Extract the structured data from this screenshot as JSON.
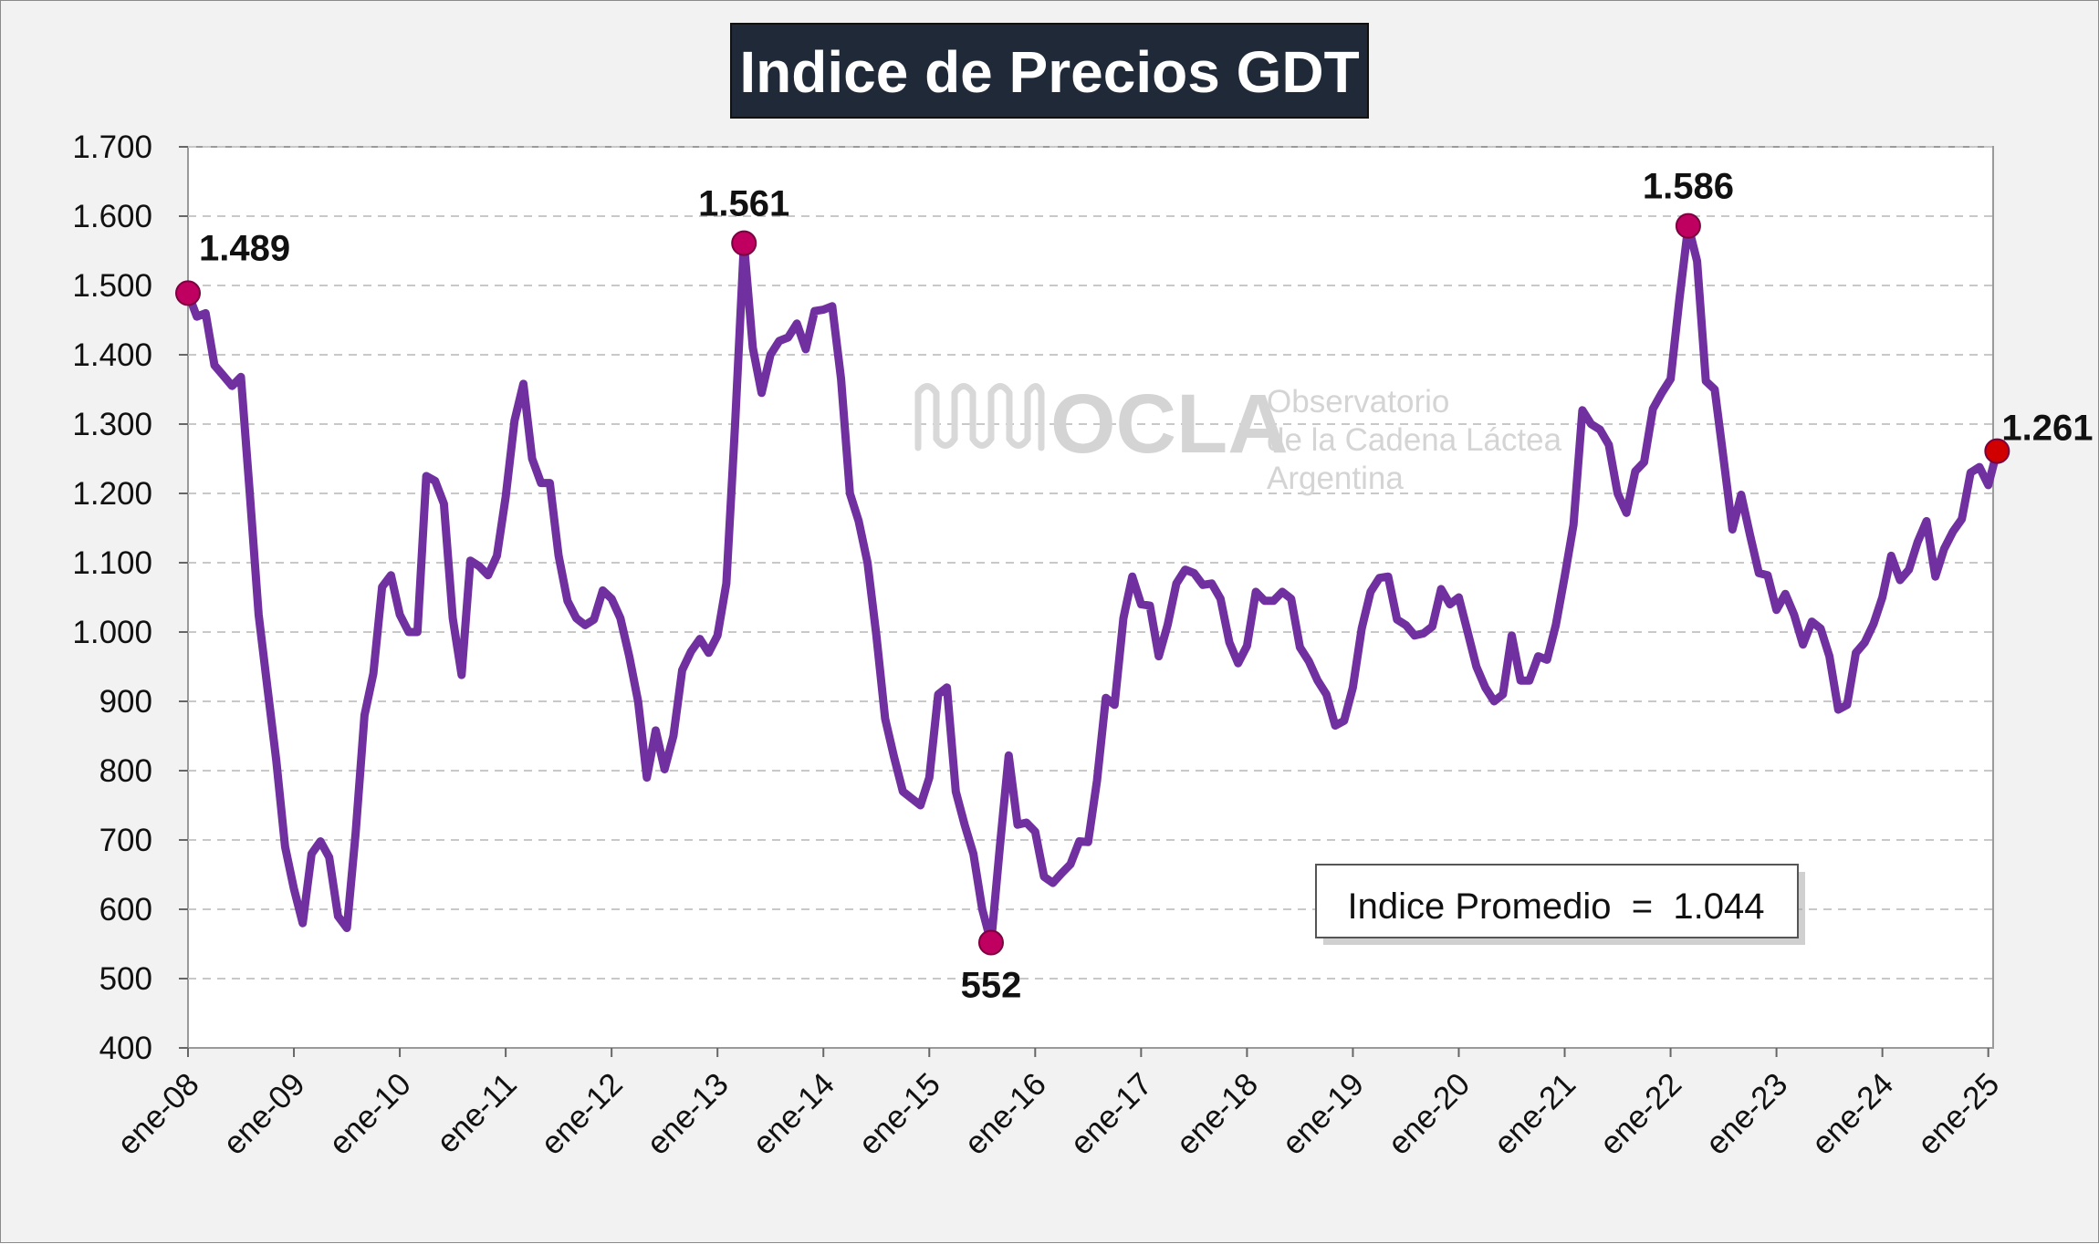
{
  "title": "Indice de Precios GDT",
  "average_box": {
    "label": "Indice Promedio",
    "equals": "=",
    "value": "1.044"
  },
  "watermark": {
    "brand": "OCLA",
    "line1": "Observatorio",
    "line2": "de la Cadena Láctea",
    "line3": "Argentina"
  },
  "colors": {
    "line": "#7030a0",
    "marker_peak": "#c00060",
    "marker_last": "#d00000",
    "title_bg": "#1f2937",
    "plot_bg": "#ffffff",
    "frame_bg": "#f2f2f2",
    "grid": "#c8c8c8"
  },
  "chart_data": {
    "type": "line",
    "title": "Indice de Precios GDT",
    "xlabel": "",
    "ylabel": "",
    "ylim": [
      400,
      1700
    ],
    "y_ticks": [
      400,
      500,
      600,
      700,
      800,
      900,
      1000,
      1100,
      1200,
      1300,
      1400,
      1500,
      1600,
      1700
    ],
    "y_tick_labels": [
      "400",
      "500",
      "600",
      "700",
      "800",
      "900",
      "1.000",
      "1.100",
      "1.200",
      "1.300",
      "1.400",
      "1.500",
      "1.600",
      "1.700"
    ],
    "x_tick_labels": [
      "ene-08",
      "ene-09",
      "ene-10",
      "ene-11",
      "ene-12",
      "ene-13",
      "ene-14",
      "ene-15",
      "ene-16",
      "ene-17",
      "ene-18",
      "ene-19",
      "ene-20",
      "ene-21",
      "ene-22",
      "ene-23",
      "ene-24",
      "ene-25"
    ],
    "grid": "horizontal dashed",
    "series": [
      {
        "points": [
          [
            "2008-01",
            1489
          ],
          [
            "2008-02",
            1455
          ],
          [
            "2008-03",
            1460
          ],
          [
            "2008-04",
            1385
          ],
          [
            "2008-05",
            1370
          ],
          [
            "2008-06",
            1355
          ],
          [
            "2008-07",
            1368
          ],
          [
            "2008-08",
            1200
          ],
          [
            "2008-09",
            1025
          ],
          [
            "2008-10",
            920
          ],
          [
            "2008-11",
            815
          ],
          [
            "2008-12",
            690
          ],
          [
            "2009-01",
            630
          ],
          [
            "2009-02",
            580
          ],
          [
            "2009-03",
            680
          ],
          [
            "2009-04",
            698
          ],
          [
            "2009-05",
            675
          ],
          [
            "2009-06",
            590
          ],
          [
            "2009-07",
            573
          ],
          [
            "2009-08",
            710
          ],
          [
            "2009-09",
            880
          ],
          [
            "2009-10",
            940
          ],
          [
            "2009-11",
            1065
          ],
          [
            "2009-12",
            1082
          ],
          [
            "2010-01",
            1025
          ],
          [
            "2010-02",
            1000
          ],
          [
            "2010-03",
            1000
          ],
          [
            "2010-04",
            1225
          ],
          [
            "2010-05",
            1218
          ],
          [
            "2010-06",
            1185
          ],
          [
            "2010-07",
            1020
          ],
          [
            "2010-08",
            938
          ],
          [
            "2010-09",
            1103
          ],
          [
            "2010-10",
            1095
          ],
          [
            "2010-11",
            1082
          ],
          [
            "2010-12",
            1110
          ],
          [
            "2011-01",
            1195
          ],
          [
            "2011-02",
            1305
          ],
          [
            "2011-03",
            1358
          ],
          [
            "2011-04",
            1250
          ],
          [
            "2011-05",
            1215
          ],
          [
            "2011-06",
            1215
          ],
          [
            "2011-07",
            1110
          ],
          [
            "2011-08",
            1045
          ],
          [
            "2011-09",
            1020
          ],
          [
            "2011-10",
            1010
          ],
          [
            "2011-11",
            1018
          ],
          [
            "2011-12",
            1060
          ],
          [
            "2012-01",
            1048
          ],
          [
            "2012-02",
            1020
          ],
          [
            "2012-03",
            965
          ],
          [
            "2012-04",
            900
          ],
          [
            "2012-05",
            790
          ],
          [
            "2012-06",
            858
          ],
          [
            "2012-07",
            802
          ],
          [
            "2012-08",
            850
          ],
          [
            "2012-09",
            945
          ],
          [
            "2012-10",
            972
          ],
          [
            "2012-11",
            990
          ],
          [
            "2012-12",
            970
          ],
          [
            "2013-01",
            995
          ],
          [
            "2013-02",
            1070
          ],
          [
            "2013-03",
            1300
          ],
          [
            "2013-04",
            1561
          ],
          [
            "2013-05",
            1410
          ],
          [
            "2013-06",
            1345
          ],
          [
            "2013-07",
            1400
          ],
          [
            "2013-08",
            1420
          ],
          [
            "2013-09",
            1425
          ],
          [
            "2013-10",
            1445
          ],
          [
            "2013-11",
            1408
          ],
          [
            "2013-12",
            1463
          ],
          [
            "2014-01",
            1465
          ],
          [
            "2014-02",
            1470
          ],
          [
            "2014-03",
            1365
          ],
          [
            "2014-04",
            1200
          ],
          [
            "2014-05",
            1160
          ],
          [
            "2014-06",
            1100
          ],
          [
            "2014-07",
            995
          ],
          [
            "2014-08",
            875
          ],
          [
            "2014-09",
            820
          ],
          [
            "2014-10",
            770
          ],
          [
            "2014-11",
            760
          ],
          [
            "2014-12",
            750
          ],
          [
            "2015-01",
            790
          ],
          [
            "2015-02",
            910
          ],
          [
            "2015-03",
            920
          ],
          [
            "2015-04",
            770
          ],
          [
            "2015-05",
            722
          ],
          [
            "2015-06",
            680
          ],
          [
            "2015-07",
            600
          ],
          [
            "2015-08",
            552
          ],
          [
            "2015-09",
            690
          ],
          [
            "2015-10",
            822
          ],
          [
            "2015-11",
            722
          ],
          [
            "2015-12",
            725
          ],
          [
            "2016-01",
            712
          ],
          [
            "2016-02",
            647
          ],
          [
            "2016-03",
            638
          ],
          [
            "2016-04",
            652
          ],
          [
            "2016-05",
            665
          ],
          [
            "2016-06",
            698
          ],
          [
            "2016-07",
            697
          ],
          [
            "2016-08",
            785
          ],
          [
            "2016-09",
            905
          ],
          [
            "2016-10",
            895
          ],
          [
            "2016-11",
            1020
          ],
          [
            "2016-12",
            1080
          ],
          [
            "2017-01",
            1040
          ],
          [
            "2017-02",
            1038
          ],
          [
            "2017-03",
            965
          ],
          [
            "2017-04",
            1010
          ],
          [
            "2017-05",
            1070
          ],
          [
            "2017-06",
            1090
          ],
          [
            "2017-07",
            1085
          ],
          [
            "2017-08",
            1068
          ],
          [
            "2017-09",
            1070
          ],
          [
            "2017-10",
            1048
          ],
          [
            "2017-11",
            985
          ],
          [
            "2017-12",
            955
          ],
          [
            "2018-01",
            980
          ],
          [
            "2018-02",
            1058
          ],
          [
            "2018-03",
            1045
          ],
          [
            "2018-04",
            1045
          ],
          [
            "2018-05",
            1058
          ],
          [
            "2018-06",
            1048
          ],
          [
            "2018-07",
            978
          ],
          [
            "2018-08",
            958
          ],
          [
            "2018-09",
            930
          ],
          [
            "2018-10",
            910
          ],
          [
            "2018-11",
            865
          ],
          [
            "2018-12",
            872
          ],
          [
            "2019-01",
            920
          ],
          [
            "2019-02",
            1005
          ],
          [
            "2019-03",
            1058
          ],
          [
            "2019-04",
            1078
          ],
          [
            "2019-05",
            1080
          ],
          [
            "2019-06",
            1018
          ],
          [
            "2019-07",
            1010
          ],
          [
            "2019-08",
            995
          ],
          [
            "2019-09",
            998
          ],
          [
            "2019-10",
            1008
          ],
          [
            "2019-11",
            1062
          ],
          [
            "2019-12",
            1040
          ],
          [
            "2020-01",
            1050
          ],
          [
            "2020-02",
            1000
          ],
          [
            "2020-03",
            950
          ],
          [
            "2020-04",
            920
          ],
          [
            "2020-05",
            900
          ],
          [
            "2020-06",
            910
          ],
          [
            "2020-07",
            995
          ],
          [
            "2020-08",
            930
          ],
          [
            "2020-09",
            930
          ],
          [
            "2020-10",
            965
          ],
          [
            "2020-11",
            960
          ],
          [
            "2020-12",
            1010
          ],
          [
            "2021-01",
            1080
          ],
          [
            "2021-02",
            1155
          ],
          [
            "2021-03",
            1320
          ],
          [
            "2021-04",
            1300
          ],
          [
            "2021-05",
            1292
          ],
          [
            "2021-06",
            1270
          ],
          [
            "2021-07",
            1200
          ],
          [
            "2021-08",
            1172
          ],
          [
            "2021-09",
            1232
          ],
          [
            "2021-10",
            1245
          ],
          [
            "2021-11",
            1322
          ],
          [
            "2021-12",
            1345
          ],
          [
            "2022-01",
            1365
          ],
          [
            "2022-02",
            1480
          ],
          [
            "2022-03",
            1586
          ],
          [
            "2022-04",
            1535
          ],
          [
            "2022-05",
            1362
          ],
          [
            "2022-06",
            1350
          ],
          [
            "2022-07",
            1250
          ],
          [
            "2022-08",
            1148
          ],
          [
            "2022-09",
            1198
          ],
          [
            "2022-10",
            1140
          ],
          [
            "2022-11",
            1085
          ],
          [
            "2022-12",
            1082
          ],
          [
            "2023-01",
            1032
          ],
          [
            "2023-02",
            1055
          ],
          [
            "2023-03",
            1025
          ],
          [
            "2023-04",
            982
          ],
          [
            "2023-05",
            1015
          ],
          [
            "2023-06",
            1005
          ],
          [
            "2023-07",
            965
          ],
          [
            "2023-08",
            888
          ],
          [
            "2023-09",
            895
          ],
          [
            "2023-10",
            970
          ],
          [
            "2023-11",
            985
          ],
          [
            "2023-12",
            1012
          ],
          [
            "2024-01",
            1050
          ],
          [
            "2024-02",
            1110
          ],
          [
            "2024-03",
            1075
          ],
          [
            "2024-04",
            1090
          ],
          [
            "2024-05",
            1130
          ],
          [
            "2024-06",
            1160
          ],
          [
            "2024-07",
            1080
          ],
          [
            "2024-08",
            1120
          ],
          [
            "2024-09",
            1145
          ],
          [
            "2024-10",
            1163
          ],
          [
            "2024-11",
            1230
          ],
          [
            "2024-12",
            1238
          ],
          [
            "2025-01",
            1212
          ],
          [
            "2025-02",
            1261
          ]
        ]
      }
    ],
    "annotations": [
      {
        "date": "2008-01",
        "value": 1489,
        "label": "1.489",
        "kind": "peak"
      },
      {
        "date": "2013-04",
        "value": 1561,
        "label": "1.561",
        "kind": "peak"
      },
      {
        "date": "2015-08",
        "value": 552,
        "label": "552",
        "kind": "trough"
      },
      {
        "date": "2022-03",
        "value": 1586,
        "label": "1.586",
        "kind": "peak"
      },
      {
        "date": "2025-02",
        "value": 1261,
        "label": "1.261",
        "kind": "last"
      }
    ]
  }
}
